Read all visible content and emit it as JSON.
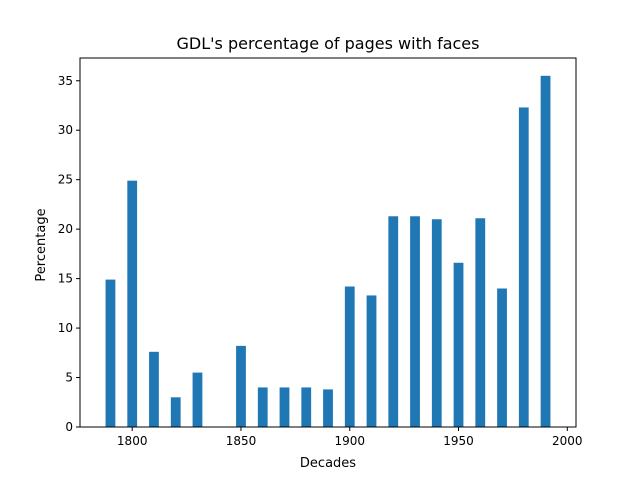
{
  "chart_data": {
    "type": "bar",
    "title": "GDL's percentage of pages with faces",
    "xlabel": "Decades",
    "ylabel": "Percentage",
    "x": [
      1790,
      1800,
      1810,
      1820,
      1830,
      1850,
      1860,
      1870,
      1880,
      1890,
      1900,
      1910,
      1920,
      1930,
      1940,
      1950,
      1960,
      1970,
      1980,
      1990
    ],
    "values": [
      14.9,
      24.9,
      7.6,
      3.0,
      5.5,
      8.2,
      4.0,
      4.0,
      4.0,
      3.8,
      14.2,
      13.3,
      21.3,
      21.3,
      21.0,
      16.6,
      21.1,
      14.0,
      32.3,
      35.5
    ],
    "bar_width": 4.5,
    "xlim": [
      1776,
      2004
    ],
    "ylim": [
      0,
      37.3
    ],
    "xticks": [
      1800,
      1850,
      1900,
      1950,
      2000
    ],
    "yticks": [
      0,
      5,
      10,
      15,
      20,
      25,
      30,
      35
    ],
    "grid": false,
    "legend": "none",
    "bar_color": "#1f77b4",
    "axis_color": "#000000"
  }
}
